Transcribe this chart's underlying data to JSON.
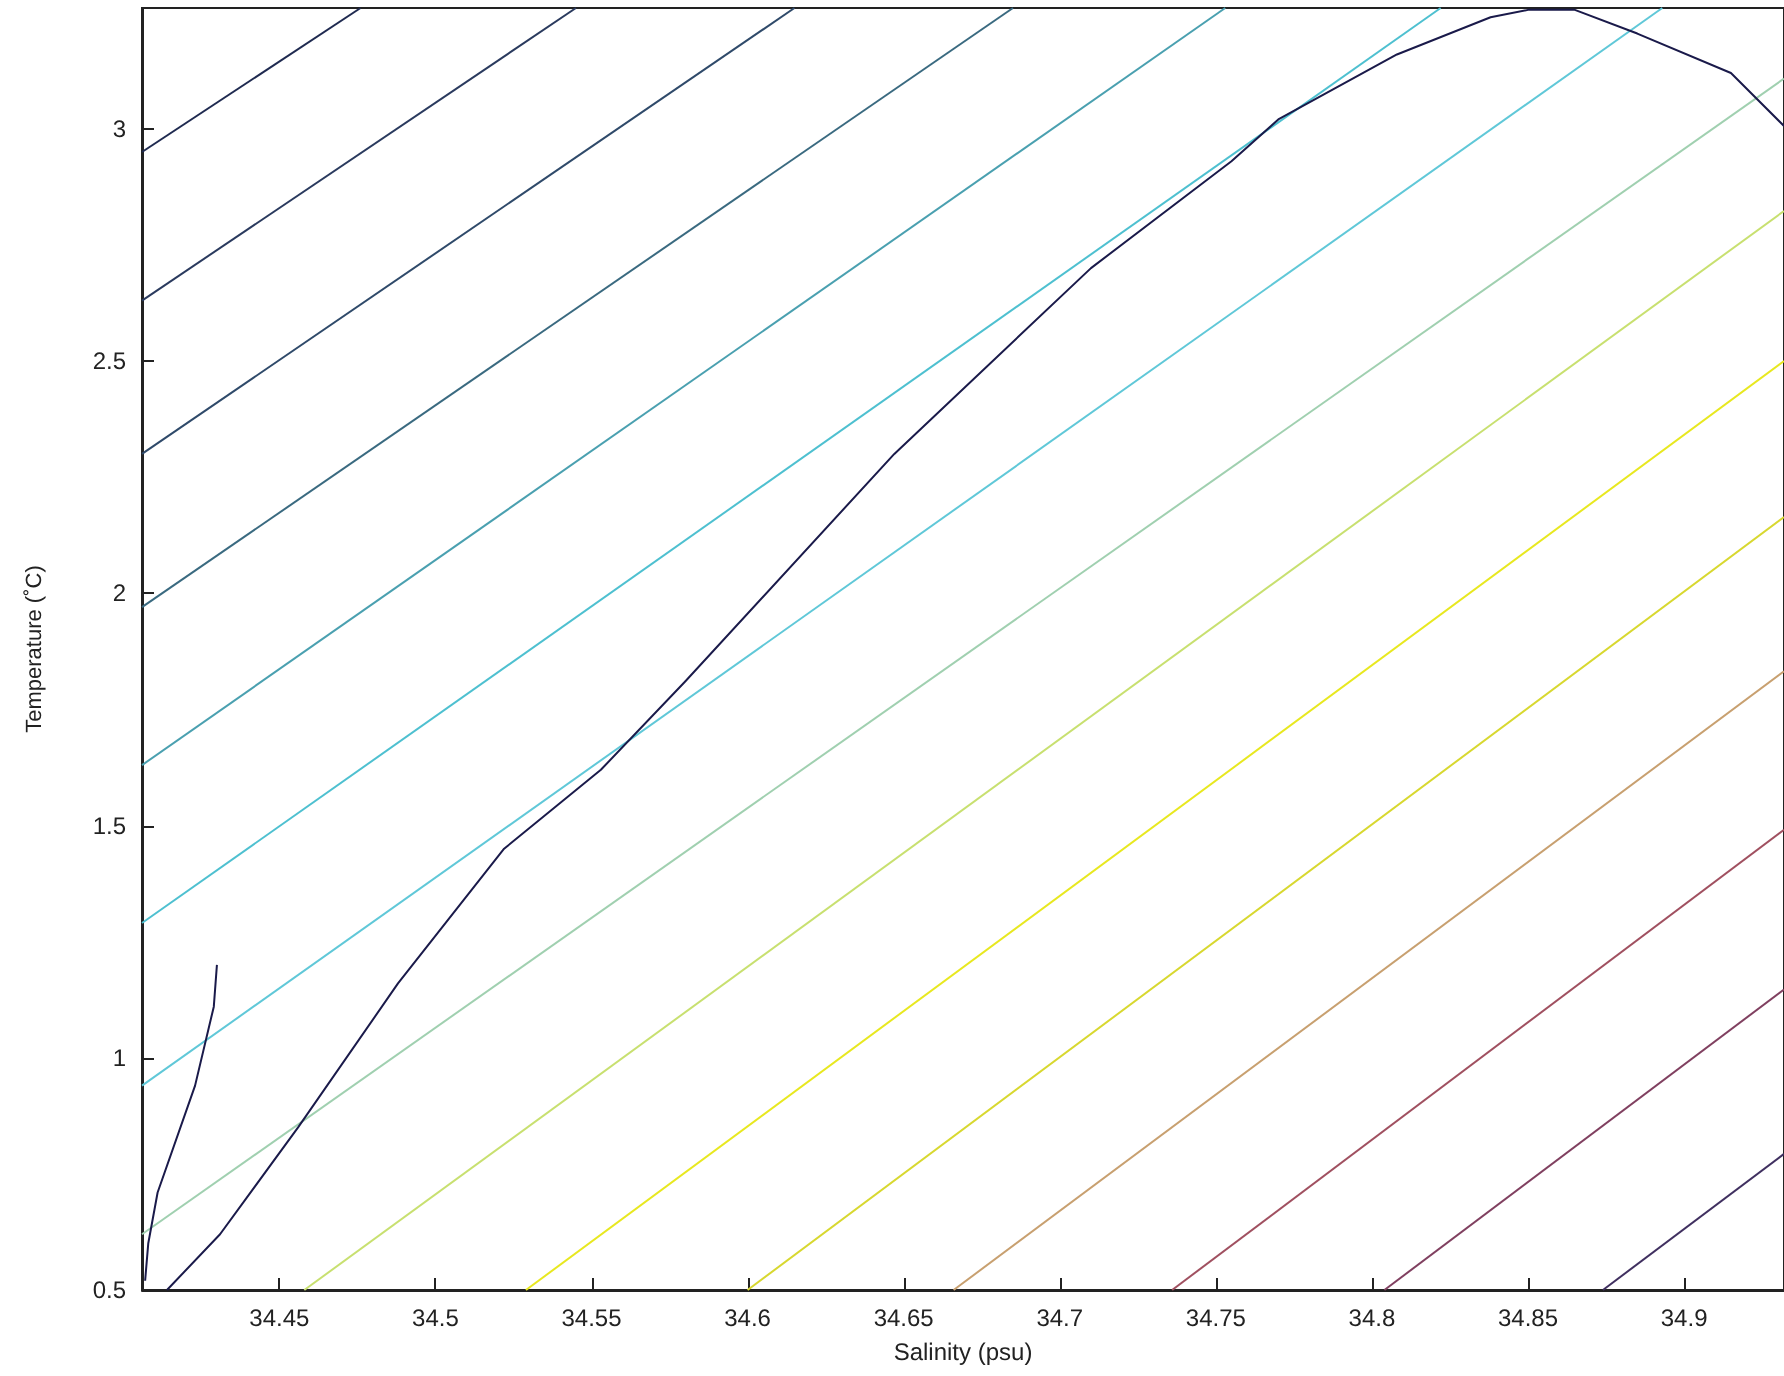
{
  "chart_data": {
    "type": "line",
    "xlabel": "Salinity (psu)",
    "ylabel": "Temperature (˚C)",
    "xlim": [
      34.406,
      34.932
    ],
    "ylim": [
      0.5,
      3.26
    ],
    "xticks": [
      34.45,
      34.5,
      34.55,
      34.6,
      34.65,
      34.7,
      34.75,
      34.8,
      34.85,
      34.9
    ],
    "yticks": [
      0.5,
      1,
      1.5,
      2,
      2.5,
      3
    ],
    "grid": false,
    "marker": "none",
    "series": [
      {
        "color": "#1f2a50",
        "x": [
          34.406,
          34.476
        ],
        "values": [
          2.95,
          3.26
        ]
      },
      {
        "color": "#2a3a5e",
        "x": [
          34.406,
          34.545
        ],
        "values": [
          2.63,
          3.26
        ]
      },
      {
        "color": "#2f4a6a",
        "x": [
          34.406,
          34.615
        ],
        "values": [
          2.3,
          3.26
        ]
      },
      {
        "color": "#3a6a80",
        "x": [
          34.406,
          34.685
        ],
        "values": [
          1.97,
          3.26
        ]
      },
      {
        "color": "#4aa0b0",
        "x": [
          34.406,
          34.753
        ],
        "values": [
          1.63,
          3.26
        ]
      },
      {
        "color": "#4ec0d0",
        "x": [
          34.406,
          34.822
        ],
        "values": [
          1.29,
          3.26
        ]
      },
      {
        "color": "#60c8d8",
        "x": [
          34.406,
          34.893
        ],
        "values": [
          0.94,
          3.26
        ]
      },
      {
        "color": "#a0d0b0",
        "x": [
          34.406,
          34.932
        ],
        "values": [
          0.62,
          3.108
        ]
      },
      {
        "color": "#c8e070",
        "x": [
          34.458,
          34.932
        ],
        "values": [
          0.5,
          2.823
        ]
      },
      {
        "color": "#e8e820",
        "x": [
          34.529,
          34.932
        ],
        "values": [
          0.5,
          2.5
        ]
      },
      {
        "color": "#d8d830",
        "x": [
          34.6,
          34.932
        ],
        "values": [
          0.5,
          2.164
        ]
      },
      {
        "color": "#c8a070",
        "x": [
          34.666,
          34.932
        ],
        "values": [
          0.5,
          1.832
        ]
      },
      {
        "color": "#a05060",
        "x": [
          34.736,
          34.932
        ],
        "values": [
          0.5,
          1.491
        ]
      },
      {
        "color": "#804060",
        "x": [
          34.804,
          34.932
        ],
        "values": [
          0.5,
          1.147
        ]
      },
      {
        "color": "#403060",
        "x": [
          34.874,
          34.932
        ],
        "values": [
          0.5,
          0.793
        ]
      },
      {
        "color": "#1a1a4a",
        "x": [
          34.414,
          34.431,
          34.456,
          34.488,
          34.522,
          34.553,
          34.58,
          34.647,
          34.71,
          34.755,
          34.77,
          34.808,
          34.838,
          34.85,
          34.865,
          34.885,
          34.915,
          34.932
        ],
        "values": [
          0.5,
          0.62,
          0.85,
          1.16,
          1.45,
          1.62,
          1.81,
          2.3,
          2.7,
          2.93,
          3.02,
          3.16,
          3.24,
          3.256,
          3.256,
          3.205,
          3.12,
          3.006
        ]
      },
      {
        "color": "#1a1a4a",
        "x": [
          34.43,
          34.429,
          34.423,
          34.411,
          34.408,
          34.407
        ],
        "values": [
          1.2,
          1.11,
          0.94,
          0.71,
          0.6,
          0.52
        ]
      }
    ]
  }
}
